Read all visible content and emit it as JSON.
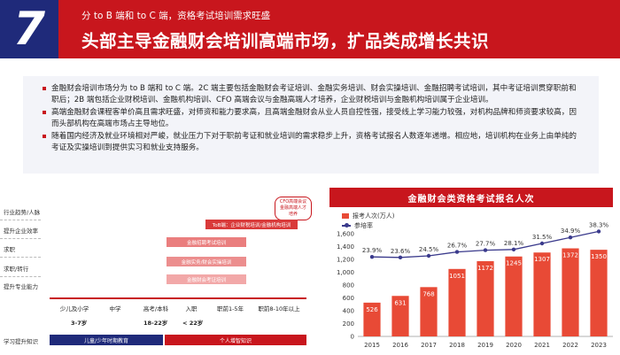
{
  "header": {
    "badge_number": "7",
    "subtitle": "分 to B 端和 to C 端，资格考试培训需求旺盛",
    "title": "头部主导金融财会培训高端市场，扩品类成增长共识"
  },
  "bullets": [
    "金融财会培训市场分为 to B 端和 to C 端。2C 端主要包括金融财会考证培训、金融实务培训、财会实操培训、金融招聘考试培训，其中考证培训贯穿职前和职后；2B 端包括企业财税培训、金融机构培训、CFO 高端会议与金融高端人才培养，企业财税培训与金融机构培训属于企业培训。",
    "高端金融财会课程客单价高且需求旺盛，对师资和能力要求高，且高端金融财会从业人员自控性强，接受线上学习能力较强，对机构品牌和师资要求较高，因而头部机构在高端市场占主导地位。",
    "随着国内经济及就业环境相对严峻，就业压力下对于职前考证和就业培训的需求稳步上升，资格考试报名人数逐年递增。相应地，培训机构在业务上由单纯的考证及实操培训到提供实习和就业支持服务。"
  ],
  "career_path": {
    "row_labels": [
      "行业趋势/人脉",
      "提升企业效率",
      "求职",
      "求职/转行",
      "提升专业能力"
    ],
    "bottom_label": "学习提升知识",
    "cfo_bubble": "CFO高端会议\n金融高端人才培养",
    "bars": [
      {
        "label": "ToB端：企业财税培训/金融机构培训"
      },
      {
        "label": "金融招聘考试培训"
      },
      {
        "label": "金融实务/财会实操培训"
      },
      {
        "label": "金融财会考证培训"
      }
    ],
    "stages": [
      "少儿及小学",
      "中学",
      "高考/本科",
      "入职",
      "职前1-5年",
      "职前8-10年以上"
    ],
    "ages": [
      "3-7岁",
      "18-22岁",
      "< 22岁"
    ],
    "bottom_bars": [
      "儿童/少年时期教育",
      "个人增智知识"
    ]
  },
  "chart_data": {
    "type": "bar",
    "title": "金融财会类资格考试报名人次",
    "legend": [
      "报考人次(万人)",
      "参培率"
    ],
    "categories": [
      "2015",
      "2016",
      "2017",
      "2018",
      "2019",
      "2020",
      "2021",
      "2022",
      "2023"
    ],
    "series": [
      {
        "name": "报考人次(万人)",
        "type": "bar",
        "values": [
          526,
          631,
          768,
          1051,
          1172,
          1245,
          1307,
          1372,
          1350
        ]
      },
      {
        "name": "参培率",
        "type": "line",
        "values": [
          23.9,
          23.6,
          24.5,
          26.7,
          27.7,
          28.1,
          31.5,
          34.9,
          38.3
        ],
        "labels": [
          "23.9%",
          "23.6%",
          "24.5%",
          "26.7%",
          "27.7%",
          "28.1%",
          "31.5%",
          "34.9%",
          "38.3%"
        ]
      }
    ],
    "yticks": [
      0,
      200,
      400,
      600,
      800,
      1000,
      1200,
      1400,
      1600
    ],
    "ylim": [
      0,
      1600
    ],
    "colors": {
      "bar": "#e84a36",
      "line": "#3a3a8c"
    }
  },
  "colors": {
    "brand_red": "#c8161d",
    "navy": "#1f2a7a"
  }
}
